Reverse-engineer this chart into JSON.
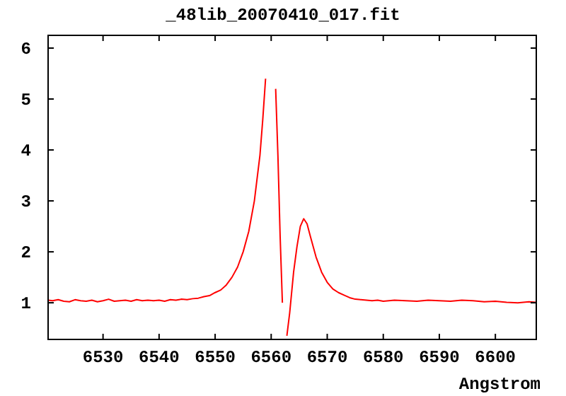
{
  "chart_data": {
    "type": "line",
    "title": "_48lib_20070410_017.fit",
    "xlabel": "Angstrom",
    "xlim": [
      6520.2,
      6607.3
    ],
    "ylim": [
      0.28,
      6.25
    ],
    "xticks": [
      6530,
      6540,
      6550,
      6560,
      6570,
      6580,
      6590,
      6600
    ],
    "yticks": [
      1,
      2,
      3,
      4,
      5,
      6
    ],
    "grid": false,
    "series": [
      {
        "color": "#ff0000",
        "x": [
          6520.2,
          6521,
          6522,
          6523,
          6524,
          6525,
          6526,
          6527,
          6528,
          6529,
          6530,
          6531,
          6532,
          6533,
          6534,
          6535,
          6536,
          6537,
          6538,
          6539,
          6540,
          6541,
          6542,
          6543,
          6544,
          6545,
          6546,
          6547,
          6548,
          6549,
          6550,
          6551,
          6552,
          6553,
          6554,
          6555,
          6556,
          6557,
          6558,
          6558.5,
          6559,
          6559.6,
          6560.3,
          6560.8,
          6561.2,
          6561.6,
          6562,
          6562.4,
          6562.8,
          6563.3,
          6564,
          6564.6,
          6565.2,
          6565.8,
          6566.4,
          6567,
          6568,
          6569,
          6570,
          6571,
          6572,
          6573,
          6574,
          6575,
          6576,
          6577,
          6578,
          6579,
          6580,
          6582,
          6584,
          6586,
          6588,
          6590,
          6592,
          6594,
          6596,
          6598,
          6600,
          6602,
          6604,
          6606,
          6607.3
        ],
        "values": [
          1.05,
          1.04,
          1.06,
          1.03,
          1.02,
          1.06,
          1.04,
          1.03,
          1.05,
          1.02,
          1.04,
          1.07,
          1.03,
          1.04,
          1.05,
          1.03,
          1.06,
          1.04,
          1.05,
          1.04,
          1.05,
          1.03,
          1.06,
          1.05,
          1.07,
          1.06,
          1.08,
          1.09,
          1.12,
          1.14,
          1.2,
          1.25,
          1.35,
          1.5,
          1.7,
          2.0,
          2.4,
          3.0,
          3.9,
          4.6,
          5.4,
          null,
          null,
          5.2,
          3.9,
          2.3,
          1.0,
          null,
          0.35,
          0.8,
          1.6,
          2.1,
          2.5,
          2.65,
          2.55,
          2.3,
          1.9,
          1.6,
          1.4,
          1.27,
          1.2,
          1.15,
          1.1,
          1.07,
          1.06,
          1.05,
          1.04,
          1.05,
          1.03,
          1.05,
          1.04,
          1.03,
          1.05,
          1.04,
          1.03,
          1.05,
          1.04,
          1.02,
          1.03,
          1.01,
          1.0,
          1.02,
          1.01
        ]
      }
    ]
  }
}
